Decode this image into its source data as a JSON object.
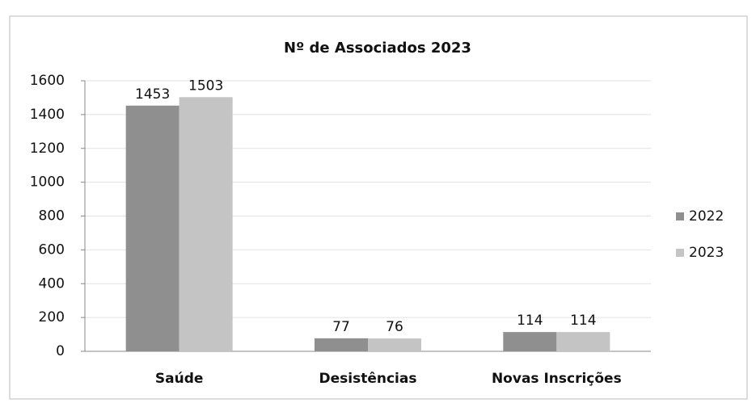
{
  "chart_data": {
    "type": "bar",
    "title": "Nº de Associados 2023",
    "categories": [
      "Saúde",
      "Desistências",
      "Novas Inscrições"
    ],
    "series": [
      {
        "name": "2022",
        "color": "#8f8f8f",
        "values": [
          1453,
          77,
          114
        ]
      },
      {
        "name": "2023",
        "color": "#c4c4c4",
        "values": [
          1503,
          76,
          114
        ]
      }
    ],
    "ylim": [
      0,
      1600
    ],
    "yticks": [
      0,
      200,
      400,
      600,
      800,
      1000,
      1200,
      1400,
      1600
    ],
    "grid": true,
    "legend": "right"
  }
}
